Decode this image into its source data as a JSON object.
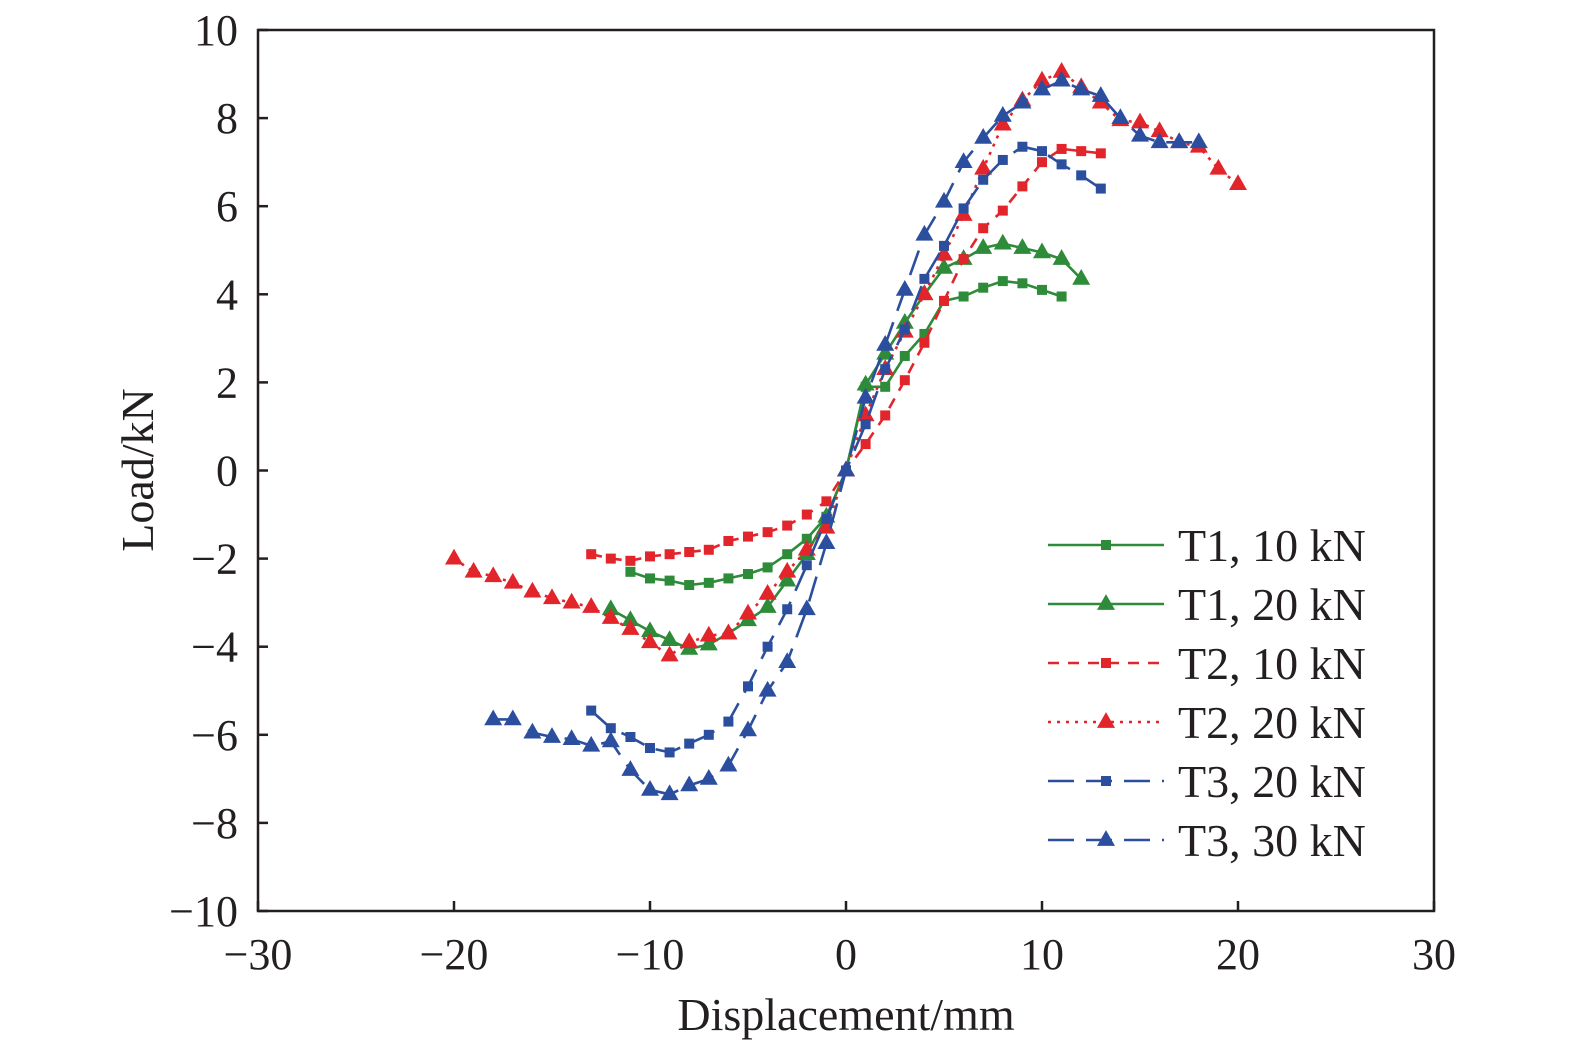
{
  "chart_data": {
    "type": "line",
    "title": "",
    "xlabel": "Displacement/mm",
    "ylabel": "Load/kN",
    "xlim": [
      -30,
      30
    ],
    "ylim": [
      -10,
      10
    ],
    "xticks": [
      -30,
      -20,
      -10,
      0,
      10,
      20,
      30
    ],
    "yticks": [
      -10,
      -8,
      -6,
      -4,
      -2,
      0,
      2,
      4,
      6,
      8,
      10
    ],
    "xtick_labels": [
      "−30",
      "−20",
      "−10",
      "0",
      "10",
      "20",
      "30"
    ],
    "ytick_labels": [
      "−10",
      "−8",
      "−6",
      "−4",
      "−2",
      "0",
      "2",
      "4",
      "6",
      "8",
      "10"
    ],
    "grid": false,
    "legend_position": "bottom-right",
    "series": [
      {
        "name": "T1, 10 kN",
        "color": "#2e8b3a",
        "line_style": "solid",
        "marker": "square",
        "x": [
          -11,
          -10,
          -9,
          -8,
          -7,
          -6,
          -5,
          -4,
          -3,
          -2,
          -1,
          0,
          1,
          2,
          3,
          4,
          5,
          6,
          7,
          8,
          9,
          10,
          11
        ],
        "y": [
          -2.3,
          -2.45,
          -2.5,
          -2.6,
          -2.55,
          -2.45,
          -2.35,
          -2.2,
          -1.9,
          -1.55,
          -1.05,
          0,
          1.9,
          1.9,
          2.6,
          3.1,
          3.85,
          3.95,
          4.15,
          4.3,
          4.25,
          4.1,
          3.95
        ]
      },
      {
        "name": "T1, 20 kN",
        "color": "#2e8b3a",
        "line_style": "solid",
        "marker": "triangle",
        "x": [
          -12,
          -11,
          -10,
          -9,
          -8,
          -7,
          -6,
          -5,
          -4,
          -3,
          -2,
          -1,
          0,
          1,
          2,
          3,
          4,
          5,
          6,
          7,
          8,
          9,
          10,
          11,
          12
        ],
        "y": [
          -3.15,
          -3.4,
          -3.65,
          -3.85,
          -4.05,
          -3.95,
          -3.7,
          -3.4,
          -3.1,
          -2.5,
          -1.9,
          -1.05,
          0,
          1.95,
          2.65,
          3.35,
          4.0,
          4.6,
          4.8,
          5.05,
          5.15,
          5.05,
          4.95,
          4.8,
          4.35
        ]
      },
      {
        "name": "T2, 10 kN",
        "color": "#e2252b",
        "line_style": "dashed",
        "marker": "square",
        "x": [
          -13,
          -12,
          -11,
          -10,
          -9,
          -8,
          -7,
          -6,
          -5,
          -4,
          -3,
          -2,
          -1,
          0,
          1,
          2,
          3,
          4,
          5,
          6,
          7,
          8,
          9,
          10,
          11,
          12,
          13
        ],
        "y": [
          -1.9,
          -2.0,
          -2.05,
          -1.95,
          -1.9,
          -1.85,
          -1.8,
          -1.6,
          -1.5,
          -1.4,
          -1.25,
          -1.0,
          -0.7,
          0,
          0.6,
          1.25,
          2.05,
          2.9,
          3.85,
          4.8,
          5.5,
          5.9,
          6.45,
          7.0,
          7.3,
          7.25,
          7.2
        ]
      },
      {
        "name": "T2, 20 kN",
        "color": "#e2252b",
        "line_style": "dotted",
        "marker": "triangle",
        "x": [
          -20,
          -19,
          -18,
          -17,
          -16,
          -15,
          -14,
          -13,
          -12,
          -11,
          -10,
          -9,
          -8,
          -7,
          -6,
          -5,
          -4,
          -3,
          -2,
          -1,
          0,
          1,
          2,
          3,
          4,
          5,
          6,
          7,
          8,
          9,
          10,
          11,
          12,
          13,
          14,
          15,
          16,
          17,
          18,
          19,
          20
        ],
        "y": [
          -2.0,
          -2.3,
          -2.4,
          -2.55,
          -2.75,
          -2.9,
          -3.0,
          -3.1,
          -3.35,
          -3.6,
          -3.9,
          -4.2,
          -3.9,
          -3.75,
          -3.7,
          -3.25,
          -2.8,
          -2.3,
          -1.8,
          -1.3,
          0,
          1.25,
          2.3,
          3.15,
          4.0,
          4.9,
          5.8,
          6.85,
          7.85,
          8.4,
          8.85,
          9.05,
          8.7,
          8.35,
          7.95,
          7.9,
          7.7,
          7.45,
          7.35,
          6.85,
          6.5
        ]
      },
      {
        "name": "T3, 20 kN",
        "color": "#2b4f9e",
        "line_style": "longdash",
        "marker": "square",
        "x": [
          -13,
          -12,
          -11,
          -10,
          -9,
          -8,
          -7,
          -6,
          -5,
          -4,
          -3,
          -2,
          -1,
          0,
          1,
          2,
          3,
          4,
          5,
          6,
          7,
          8,
          9,
          10,
          11,
          12,
          13
        ],
        "y": [
          -5.45,
          -5.85,
          -6.05,
          -6.3,
          -6.4,
          -6.2,
          -6.0,
          -5.7,
          -4.9,
          -4.0,
          -3.15,
          -2.15,
          -1.1,
          0,
          1.05,
          2.3,
          3.2,
          4.35,
          5.1,
          5.95,
          6.6,
          7.05,
          7.35,
          7.25,
          6.95,
          6.7,
          6.4
        ]
      },
      {
        "name": "T3, 30 kN",
        "color": "#2b4f9e",
        "line_style": "longdash",
        "marker": "triangle",
        "x": [
          -18,
          -17,
          -16,
          -15,
          -14,
          -13,
          -12,
          -11,
          -10,
          -9,
          -8,
          -7,
          -6,
          -5,
          -4,
          -3,
          -2,
          -1,
          0,
          1,
          2,
          3,
          4,
          5,
          6,
          7,
          8,
          9,
          10,
          11,
          12,
          13,
          14,
          15,
          16,
          17,
          18
        ],
        "y": [
          -5.65,
          -5.65,
          -5.95,
          -6.05,
          -6.1,
          -6.25,
          -6.15,
          -6.8,
          -7.25,
          -7.35,
          -7.15,
          -7.0,
          -6.7,
          -5.9,
          -5.0,
          -4.35,
          -3.15,
          -1.65,
          0,
          1.65,
          2.85,
          4.1,
          5.35,
          6.1,
          7.0,
          7.55,
          8.05,
          8.35,
          8.65,
          8.85,
          8.65,
          8.5,
          8.0,
          7.6,
          7.45,
          7.45,
          7.45
        ]
      }
    ]
  }
}
